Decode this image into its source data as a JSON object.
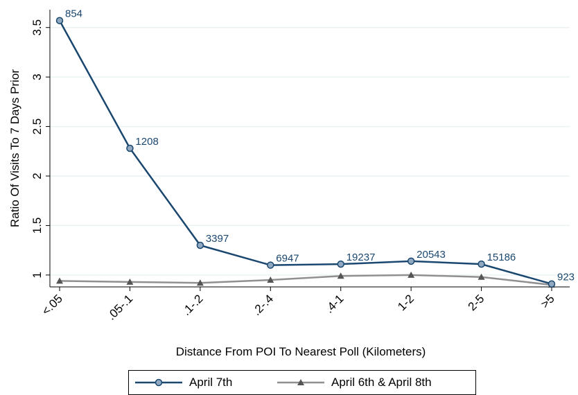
{
  "chart_data": {
    "type": "line",
    "xlabel": "Distance From POI To Nearest Poll (Kilometers)",
    "ylabel": "Ratio Of Visits To 7 Days Prior",
    "categories": [
      "<.05",
      ".05-.1",
      ".1-.2",
      ".2-.4",
      ".4-1",
      "1-2",
      "2-5",
      ">5"
    ],
    "ylim": [
      0.88,
      3.68
    ],
    "yticks": [
      1,
      1.5,
      2,
      2.5,
      3,
      3.5
    ],
    "ytick_labels": [
      "1",
      "1.5",
      "2",
      "2.5",
      "3",
      "3.5"
    ],
    "grid": true,
    "legend_position": "bottom",
    "series": [
      {
        "name": "April 7th",
        "color": "#1a476f",
        "marker": "circle",
        "values": [
          3.57,
          2.28,
          1.3,
          1.1,
          1.11,
          1.14,
          1.11,
          0.91
        ],
        "labels": [
          "854",
          "1208",
          "3397",
          "6947",
          "19237",
          "20543",
          "15186",
          "923"
        ]
      },
      {
        "name": "April 6th & April 8th",
        "color": "#909090",
        "marker": "triangle",
        "values": [
          0.94,
          0.93,
          0.92,
          0.95,
          0.99,
          1.0,
          0.98,
          0.9
        ]
      }
    ]
  }
}
